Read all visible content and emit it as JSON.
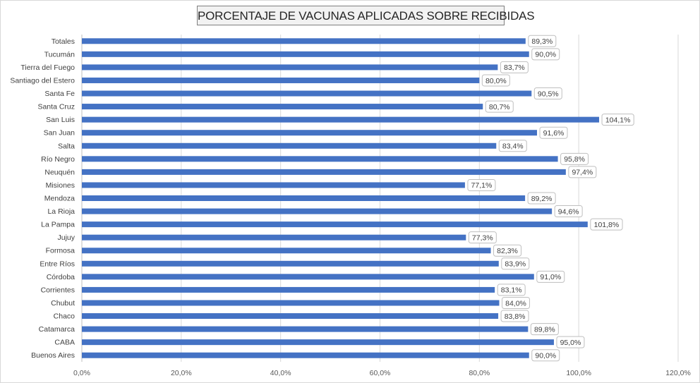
{
  "chart_data": {
    "type": "bar",
    "orientation": "horizontal",
    "title": "PORCENTAJE DE VACUNAS APLICADAS SOBRE RECIBIDAS",
    "xlabel": "",
    "ylabel": "",
    "xlim": [
      0,
      120
    ],
    "x_ticks": [
      "0,0%",
      "20,0%",
      "40,0%",
      "60,0%",
      "80,0%",
      "100,0%",
      "120,0%"
    ],
    "grid": "vertical",
    "legend": "none",
    "bar_color": "#4472c4",
    "categories": [
      "Totales",
      "Tucumán",
      "Tierra del Fuego",
      "Santiago del Estero",
      "Santa Fe",
      "Santa Cruz",
      "San Luis",
      "San Juan",
      "Salta",
      "Río Negro",
      "Neuquén",
      "Misiones",
      "Mendoza",
      "La Rioja",
      "La Pampa",
      "Jujuy",
      "Formosa",
      "Entre Ríos",
      "Córdoba",
      "Corrientes",
      "Chubut",
      "Chaco",
      "Catamarca",
      "CABA",
      "Buenos Aires"
    ],
    "values": [
      89.3,
      90.0,
      83.7,
      80.0,
      90.5,
      80.7,
      104.1,
      91.6,
      83.4,
      95.8,
      97.4,
      77.1,
      89.2,
      94.6,
      101.8,
      77.3,
      82.3,
      83.9,
      91.0,
      83.1,
      84.0,
      83.8,
      89.8,
      95.0,
      90.0
    ],
    "labels": [
      "89,3%",
      "90,0%",
      "83,7%",
      "80,0%",
      "90,5%",
      "80,7%",
      "104,1%",
      "91,6%",
      "83,4%",
      "95,8%",
      "97,4%",
      "77,1%",
      "89,2%",
      "94,6%",
      "101,8%",
      "77,3%",
      "82,3%",
      "83,9%",
      "91,0%",
      "83,1%",
      "84,0%",
      "83,8%",
      "89,8%",
      "95,0%",
      "90,0%"
    ]
  }
}
